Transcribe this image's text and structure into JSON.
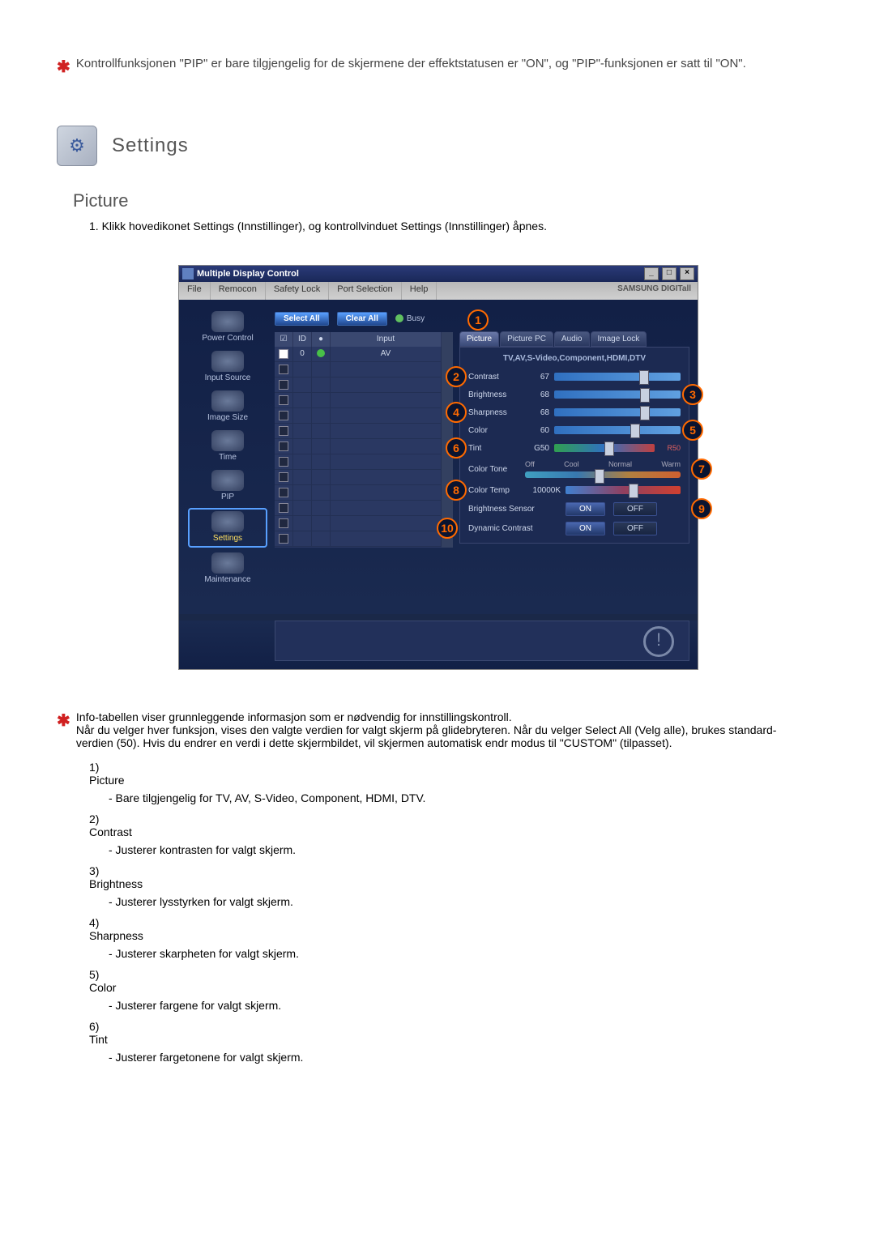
{
  "top_note": "Kontrollfunksjonen \"PIP\" er bare tilgjengelig for de skjermene der effektstatusen er \"ON\", og \"PIP\"-funksjonen er satt til \"ON\".",
  "section_title": "Settings",
  "subheading": "Picture",
  "intro_line": "1.  Klikk hovedikonet Settings (Innstillinger), og kontrollvinduet Settings (Innstillinger) åpnes.",
  "app": {
    "title": "Multiple Display Control",
    "menu": [
      "File",
      "Remocon",
      "Safety Lock",
      "Port Selection",
      "Help"
    ],
    "brand": "SAMSUNG DIGITall",
    "sidebar": [
      {
        "label": "Power Control"
      },
      {
        "label": "Input Source"
      },
      {
        "label": "Image Size"
      },
      {
        "label": "Time"
      },
      {
        "label": "PIP"
      },
      {
        "label": "Settings"
      },
      {
        "label": "Maintenance"
      }
    ],
    "select_all": "Select All",
    "clear_all": "Clear All",
    "busy": "Busy",
    "grid": {
      "headers": [
        "☑",
        "ID",
        "●",
        "Input"
      ],
      "row": {
        "id": "0",
        "input": "AV"
      }
    },
    "tabs": [
      "Picture",
      "Picture PC",
      "Audio",
      "Image Lock"
    ],
    "panel_sub": "TV,AV,S-Video,Component,HDMI,DTV",
    "sliders": {
      "contrast": {
        "label": "Contrast",
        "value": "67"
      },
      "brightness": {
        "label": "Brightness",
        "value": "68"
      },
      "sharpness": {
        "label": "Sharpness",
        "value": "68"
      },
      "color": {
        "label": "Color",
        "value": "60"
      },
      "tint": {
        "label": "Tint",
        "value": "G50",
        "right": "R50"
      }
    },
    "color_tone": {
      "label": "Color Tone",
      "opts": [
        "Off",
        "Cool",
        "Normal",
        "Warm"
      ]
    },
    "color_temp": {
      "label": "Color Temp",
      "value": "10000K"
    },
    "brightness_sensor": {
      "label": "Brightness Sensor",
      "on": "ON",
      "off": "OFF"
    },
    "dynamic_contrast": {
      "label": "Dynamic Contrast",
      "on": "ON",
      "off": "OFF"
    }
  },
  "info_note": "Info-tabellen viser grunnleggende informasjon som er nødvendig for innstillingskontroll.",
  "info_note2": "Når du velger hver funksjon, vises den valgte verdien for valgt skjerm på glidebryteren. Når du velger Select All (Velg alle), brukes standard-verdien (50). Hvis du endrer en verdi i dette skjermbildet, vil skjermen automatisk endr modus til \"CUSTOM\" (tilpasset).",
  "items": [
    {
      "n": "1)",
      "t": "Picture",
      "d": "- Bare tilgjengelig for TV, AV, S-Video, Component, HDMI, DTV."
    },
    {
      "n": "2)",
      "t": "Contrast",
      "d": "- Justerer kontrasten for valgt skjerm."
    },
    {
      "n": "3)",
      "t": "Brightness",
      "d": "- Justerer lysstyrken for valgt skjerm."
    },
    {
      "n": "4)",
      "t": "Sharpness",
      "d": "- Justerer skarpheten for valgt skjerm."
    },
    {
      "n": "5)",
      "t": "Color",
      "d": "- Justerer fargene for valgt skjerm."
    },
    {
      "n": "6)",
      "t": "Tint",
      "d": "- Justerer fargetonene for valgt skjerm."
    }
  ]
}
